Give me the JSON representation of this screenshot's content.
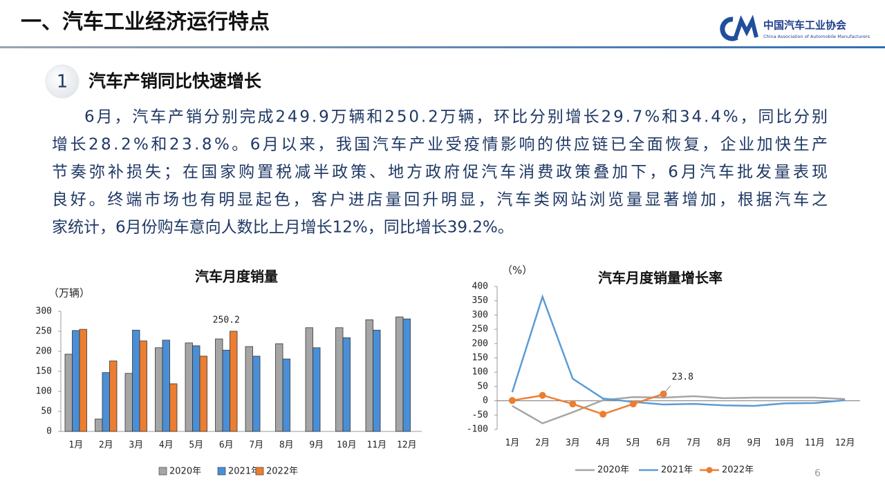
{
  "header": {
    "title": "一、汽车工业经济运行特点",
    "org_name": "中国汽车工业协会",
    "org_name_en": "China Association of Automobile Manufacturers"
  },
  "section": {
    "number": "1",
    "title": "汽车产销同比快速增长"
  },
  "paragraph": [
    "6月，汽车产销分别完成249.9万辆和250.2万辆，环比分别增长29.7%和34.4%，同比分别",
    "增长28.2%和23.8%。6月以来，我国汽车产业受疫情影响的供应链已全面恢复，企业加快生产",
    "节奏弥补损失；在国家购置税减半政策、地方政府促汽车消费政策叠加下，6月汽车批发量表现",
    "良好。终端市场也有明显起色，客户进店量回升明显，汽车类网站浏览量显著增加，根据汽车之",
    "家统计，6月份购车意向人数比上月增长12%，同比增长39.2%。"
  ],
  "chart_data": [
    {
      "type": "bar",
      "title": "汽车月度销量",
      "y_label": "（万辆）",
      "categories": [
        "1月",
        "2月",
        "3月",
        "4月",
        "5月",
        "6月",
        "7月",
        "8月",
        "9月",
        "10月",
        "11月",
        "12月"
      ],
      "series": [
        {
          "name": "2020年",
          "color": "#a5a5a5",
          "values": [
            193,
            31,
            145,
            209,
            221,
            231,
            212,
            219,
            259,
            259,
            279,
            286
          ]
        },
        {
          "name": "2021年",
          "color": "#4a8fd6",
          "values": [
            252,
            147,
            253,
            228,
            214,
            203,
            188,
            181,
            209,
            234,
            253,
            281
          ]
        },
        {
          "name": "2022年",
          "color": "#ed7d31",
          "values": [
            255,
            176,
            226,
            119,
            188,
            250.2,
            null,
            null,
            null,
            null,
            null,
            null
          ]
        }
      ],
      "ylim": [
        0,
        300
      ],
      "yticks": [
        0,
        50,
        100,
        150,
        200,
        250,
        300
      ],
      "grid": false
    },
    {
      "type": "line",
      "title": "汽车月度销量增长率",
      "y_label": "（%）",
      "categories": [
        "1月",
        "2月",
        "3月",
        "4月",
        "5月",
        "6月",
        "7月",
        "8月",
        "9月",
        "10月",
        "11月",
        "12月"
      ],
      "series": [
        {
          "name": "2020年",
          "color": "#a5a5a5",
          "values": [
            -18,
            -79,
            -40,
            2,
            13,
            11,
            16,
            9,
            11,
            11,
            11,
            6
          ]
        },
        {
          "name": "2021年",
          "color": "#5b9bd5",
          "values": [
            30,
            364,
            77,
            8,
            -4,
            -13,
            -11,
            -16,
            -18,
            -9,
            -8,
            2
          ]
        },
        {
          "name": "2022年",
          "color": "#ed7d31",
          "values": [
            1,
            19,
            -11,
            -47,
            -11,
            23.8,
            null,
            null,
            null,
            null,
            null,
            null
          ]
        }
      ],
      "ylim": [
        -100,
        400
      ],
      "yticks": [
        -100,
        -50,
        0,
        50,
        100,
        150,
        200,
        250,
        300,
        350,
        400
      ],
      "grid": false
    }
  ],
  "page_number": "6"
}
